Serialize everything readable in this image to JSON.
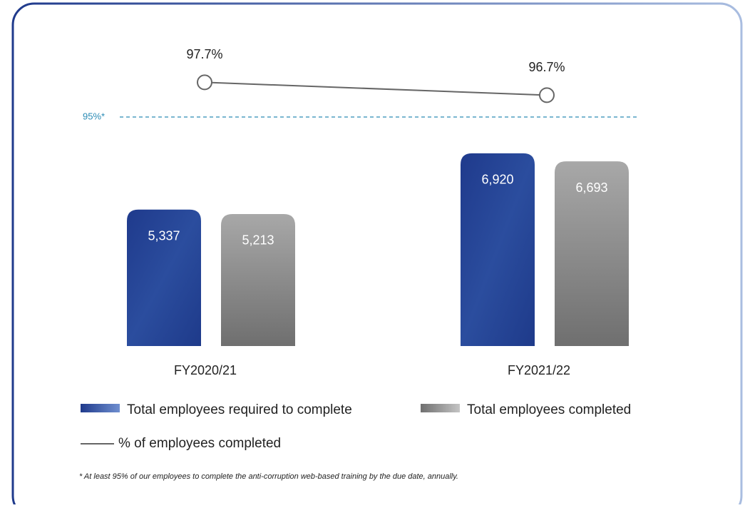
{
  "chart_data": {
    "type": "bar",
    "categories": [
      "FY2020/21",
      "FY2021/22"
    ],
    "series": [
      {
        "name": "Total employees required to complete",
        "color": "#1f3a8c",
        "values": [
          5337,
          6920
        ],
        "value_labels": [
          "5,337",
          "6,920"
        ]
      },
      {
        "name": "Total employees completed",
        "color": "#8a8a8a",
        "values": [
          5213,
          6693
        ],
        "value_labels": [
          "5,213",
          "6,693"
        ]
      },
      {
        "name": "% of employees completed",
        "type": "line",
        "axis": "y2",
        "color": "#666666",
        "values": [
          97.7,
          96.7
        ],
        "value_labels": [
          "97.7%",
          "96.7%"
        ]
      }
    ],
    "ylim": [
      1500,
      7800
    ],
    "y2lim": [
      94,
      99
    ],
    "reference": {
      "value": 95,
      "label": "95%*",
      "color": "#2a8bb5",
      "axis": "y2"
    },
    "footnote": "* At least 95% of our employees to complete the anti-corruption web-based training by the due date, annually."
  }
}
